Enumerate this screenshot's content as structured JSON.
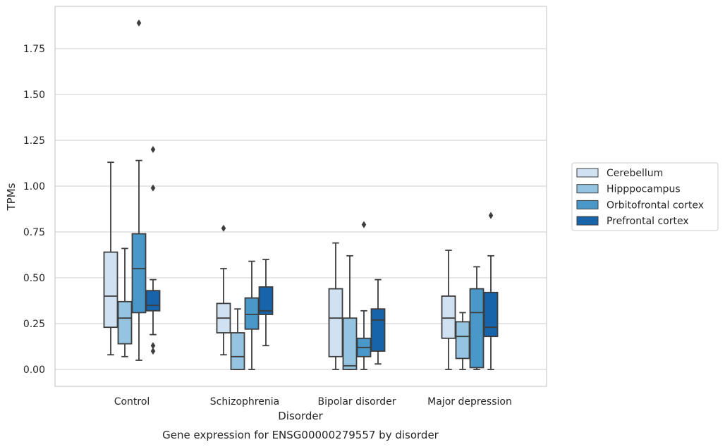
{
  "chart_data": {
    "type": "box",
    "title": "",
    "caption": "Gene expression for ENSG00000279557 by disorder",
    "xlabel": "Disorder",
    "ylabel": "TPMs",
    "ylim": [
      -0.09,
      1.99
    ],
    "yticks": [
      0.0,
      0.25,
      0.5,
      0.75,
      1.0,
      1.25,
      1.5,
      1.75
    ],
    "ytick_labels": [
      "0.00",
      "0.25",
      "0.50",
      "0.75",
      "1.00",
      "1.25",
      "1.50",
      "1.75"
    ],
    "grid": true,
    "legend_position": "right",
    "categories": [
      "Control",
      "Schizophrenia",
      "Bipolar disorder",
      "Major depression"
    ],
    "series": [
      {
        "name": "Cerebellum",
        "color": "#d0e1f2",
        "boxes": [
          {
            "whisker_low": 0.08,
            "q1": 0.23,
            "median": 0.4,
            "q3": 0.64,
            "whisker_high": 1.13,
            "outliers": []
          },
          {
            "whisker_low": 0.08,
            "q1": 0.2,
            "median": 0.28,
            "q3": 0.36,
            "whisker_high": 0.55,
            "outliers": [
              0.77
            ]
          },
          {
            "whisker_low": 0.0,
            "q1": 0.07,
            "median": 0.28,
            "q3": 0.44,
            "whisker_high": 0.69,
            "outliers": []
          },
          {
            "whisker_low": 0.0,
            "q1": 0.17,
            "median": 0.28,
            "q3": 0.4,
            "whisker_high": 0.65,
            "outliers": []
          }
        ]
      },
      {
        "name": "Hipppocampus",
        "color": "#94c4df",
        "boxes": [
          {
            "whisker_low": 0.07,
            "q1": 0.14,
            "median": 0.28,
            "q3": 0.37,
            "whisker_high": 0.66,
            "outliers": []
          },
          {
            "whisker_low": 0.0,
            "q1": 0.0,
            "median": 0.07,
            "q3": 0.2,
            "whisker_high": 0.33,
            "outliers": []
          },
          {
            "whisker_low": 0.0,
            "q1": 0.0,
            "median": 0.02,
            "q3": 0.28,
            "whisker_high": 0.62,
            "outliers": []
          },
          {
            "whisker_low": 0.0,
            "q1": 0.06,
            "median": 0.18,
            "q3": 0.26,
            "whisker_high": 0.31,
            "outliers": []
          }
        ]
      },
      {
        "name": "Orbitofrontal cortex",
        "color": "#4a98c9",
        "boxes": [
          {
            "whisker_low": 0.05,
            "q1": 0.31,
            "median": 0.55,
            "q3": 0.74,
            "whisker_high": 1.14,
            "outliers": [
              1.89
            ]
          },
          {
            "whisker_low": 0.0,
            "q1": 0.22,
            "median": 0.3,
            "q3": 0.39,
            "whisker_high": 0.59,
            "outliers": []
          },
          {
            "whisker_low": 0.0,
            "q1": 0.07,
            "median": 0.12,
            "q3": 0.17,
            "whisker_high": 0.32,
            "outliers": [
              0.79
            ]
          },
          {
            "whisker_low": 0.0,
            "q1": 0.01,
            "median": 0.31,
            "q3": 0.44,
            "whisker_high": 0.56,
            "outliers": []
          }
        ]
      },
      {
        "name": "Prefrontal cortex",
        "color": "#1764ab",
        "boxes": [
          {
            "whisker_low": 0.19,
            "q1": 0.32,
            "median": 0.35,
            "q3": 0.43,
            "whisker_high": 0.49,
            "outliers": [
              1.2,
              0.99,
              0.13,
              0.1
            ]
          },
          {
            "whisker_low": 0.13,
            "q1": 0.3,
            "median": 0.32,
            "q3": 0.45,
            "whisker_high": 0.6,
            "outliers": []
          },
          {
            "whisker_low": 0.03,
            "q1": 0.1,
            "median": 0.27,
            "q3": 0.33,
            "whisker_high": 0.49,
            "outliers": []
          },
          {
            "whisker_low": 0.0,
            "q1": 0.18,
            "median": 0.23,
            "q3": 0.42,
            "whisker_high": 0.62,
            "outliers": [
              0.84
            ]
          }
        ]
      }
    ]
  }
}
